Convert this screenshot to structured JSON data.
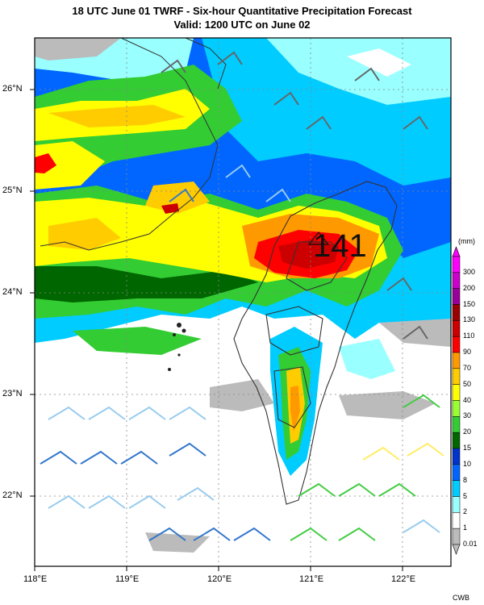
{
  "title": {
    "line1": "18 UTC June 01 TWRF - Six-hour Quantitative Precipitation Forecast",
    "line2": "Valid: 1200 UTC on June 02"
  },
  "map": {
    "lon_ticks": [
      "118°E",
      "119°E",
      "120°E",
      "121°E",
      "122°E"
    ],
    "lat_ticks": [
      "26°N",
      "25°N",
      "24°N",
      "23°N",
      "22°N"
    ],
    "max_annotation": "141",
    "extent": {
      "lon": [
        118,
        122.5
      ],
      "lat": [
        21.35,
        26.55
      ]
    }
  },
  "legend": {
    "unit": "(mm)",
    "levels": [
      "300",
      "200",
      "150",
      "130",
      "110",
      "90",
      "70",
      "50",
      "40",
      "30",
      "20",
      "15",
      "10",
      "8",
      "5",
      "2",
      "1",
      "0.01"
    ],
    "colors": [
      "#ff00ff",
      "#cc00cc",
      "#990099",
      "#990000",
      "#cc0000",
      "#ff0000",
      "#ff9900",
      "#ffcc00",
      "#ffff00",
      "#99ff33",
      "#33cc33",
      "#006600",
      "#0033cc",
      "#0066ff",
      "#00ccff",
      "#99ffff",
      "#ffffff",
      "#bbbbbb"
    ]
  },
  "credit": "CWB"
}
